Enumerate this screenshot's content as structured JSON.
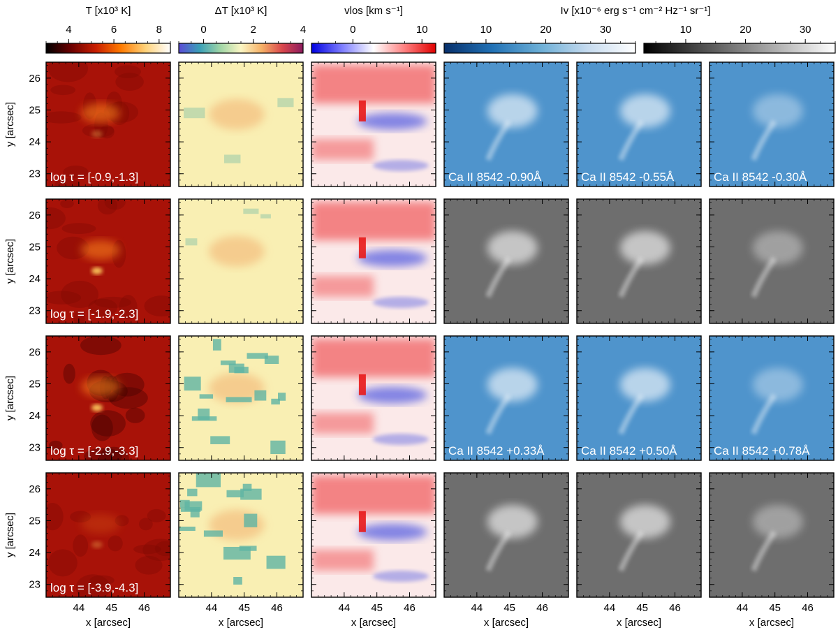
{
  "colorbars": [
    {
      "label": "T [x10³ K]",
      "ticks": [
        "4",
        "6",
        "8"
      ],
      "range": [
        3.0,
        8.5
      ],
      "tick_values": [
        4,
        6,
        8
      ],
      "colors": [
        "#000000",
        "#6b0000",
        "#c81e00",
        "#ff7a00",
        "#ffd27a",
        "#ffffff"
      ]
    },
    {
      "label": "ΔT [x10³ K]",
      "ticks": [
        "0",
        "2",
        "4"
      ],
      "range": [
        -1.0,
        4.0
      ],
      "tick_values": [
        0,
        2,
        4
      ],
      "colors": [
        "#5b4bd6",
        "#3a9fb7",
        "#9fd5a6",
        "#fbf6c4",
        "#f6b167",
        "#d9474d",
        "#8c1b5e"
      ]
    },
    {
      "label": "vlos [km s⁻¹]",
      "ticks": [
        "0",
        "10"
      ],
      "range": [
        -6,
        12
      ],
      "tick_values": [
        0,
        10
      ],
      "colors": [
        "#0000e0",
        "#7f7fff",
        "#ffffff",
        "#ff8080",
        "#e00000"
      ]
    },
    {
      "label": "Iv [x10⁻⁶ erg s⁻¹ cm⁻² Hz⁻¹ sr⁻¹]",
      "ticks": [
        "10",
        "20",
        "30"
      ],
      "range": [
        3,
        35
      ],
      "tick_values": [
        10,
        20,
        30
      ],
      "colors": [
        "#08306b",
        "#2171b5",
        "#6baed6",
        "#c6dbef",
        "#ffffff"
      ]
    },
    {
      "label": "",
      "ticks": [
        "10",
        "20",
        "30"
      ],
      "range": [
        3,
        35
      ],
      "tick_values": [
        10,
        20,
        30
      ],
      "colors": [
        "#000000",
        "#ffffff"
      ]
    }
  ],
  "axes": {
    "xlabel": "x [arcsec]",
    "ylabel": "y [arcsec]",
    "x_ticks": [
      "44",
      "45",
      "46"
    ],
    "y_ticks": [
      "23",
      "24",
      "25",
      "26"
    ],
    "x_range": [
      43.0,
      46.8
    ],
    "y_range": [
      22.6,
      26.5
    ]
  },
  "rows": [
    {
      "tau": "log τ = [-0.9,-1.3]",
      "ca_labels": [
        "Ca II 8542 -0.90Å",
        "Ca II 8542 -0.55Å",
        "Ca II 8542 -0.30Å"
      ],
      "ca_style": "blue"
    },
    {
      "tau": "log τ = [-1.9,-2.3]",
      "ca_labels": [
        "",
        "",
        ""
      ],
      "ca_style": "gray"
    },
    {
      "tau": "log τ = [-2.9,-3.3]",
      "ca_labels": [
        "Ca II 8542 +0.33Å",
        "Ca II 8542 +0.50Å",
        "Ca II 8542 +0.78Å"
      ],
      "ca_style": "blue"
    },
    {
      "tau": "log τ = [-3.9,-4.3]",
      "ca_labels": [
        "",
        "",
        ""
      ],
      "ca_style": "gray"
    }
  ],
  "style": {
    "temp_bg": "#a81208",
    "temp_bright": "#ff8a1a",
    "dt_bg": "#f9efb3",
    "dt_warm": "#f2b070",
    "dt_cool": "#5fb4a4",
    "v_red": "#f0585a",
    "v_blue": "#3040e0",
    "ca_blue_bg": "#4f94cc",
    "ca_gray_bg": "#6e6e6e"
  }
}
